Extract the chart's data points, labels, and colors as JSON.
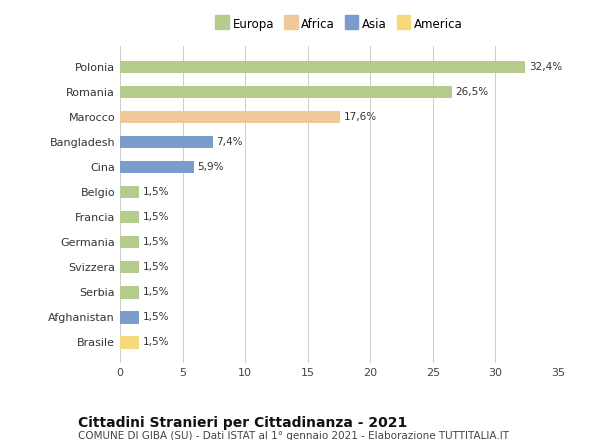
{
  "categories": [
    "Polonia",
    "Romania",
    "Marocco",
    "Bangladesh",
    "Cina",
    "Belgio",
    "Francia",
    "Germania",
    "Svizzera",
    "Serbia",
    "Afghanistan",
    "Brasile"
  ],
  "values": [
    32.4,
    26.5,
    17.6,
    7.4,
    5.9,
    1.5,
    1.5,
    1.5,
    1.5,
    1.5,
    1.5,
    1.5
  ],
  "labels": [
    "32,4%",
    "26,5%",
    "17,6%",
    "7,4%",
    "5,9%",
    "1,5%",
    "1,5%",
    "1,5%",
    "1,5%",
    "1,5%",
    "1,5%",
    "1,5%"
  ],
  "colors": [
    "#b5cc8e",
    "#b5cc8e",
    "#f0c899",
    "#7b9dcc",
    "#7b9dcc",
    "#b5cc8e",
    "#b5cc8e",
    "#b5cc8e",
    "#b5cc8e",
    "#b5cc8e",
    "#7b9dcc",
    "#f5d97a"
  ],
  "legend": [
    {
      "label": "Europa",
      "color": "#b5cc8e"
    },
    {
      "label": "Africa",
      "color": "#f0c899"
    },
    {
      "label": "Asia",
      "color": "#7b9dcc"
    },
    {
      "label": "America",
      "color": "#f5d97a"
    }
  ],
  "xlim": [
    0,
    35
  ],
  "xticks": [
    0,
    5,
    10,
    15,
    20,
    25,
    30,
    35
  ],
  "title": "Cittadini Stranieri per Cittadinanza - 2021",
  "subtitle": "COMUNE DI GIBA (SU) - Dati ISTAT al 1° gennaio 2021 - Elaborazione TUTTITALIA.IT",
  "title_fontsize": 10,
  "subtitle_fontsize": 7.5,
  "bar_height": 0.5,
  "background_color": "#ffffff",
  "grid_color": "#cccccc"
}
